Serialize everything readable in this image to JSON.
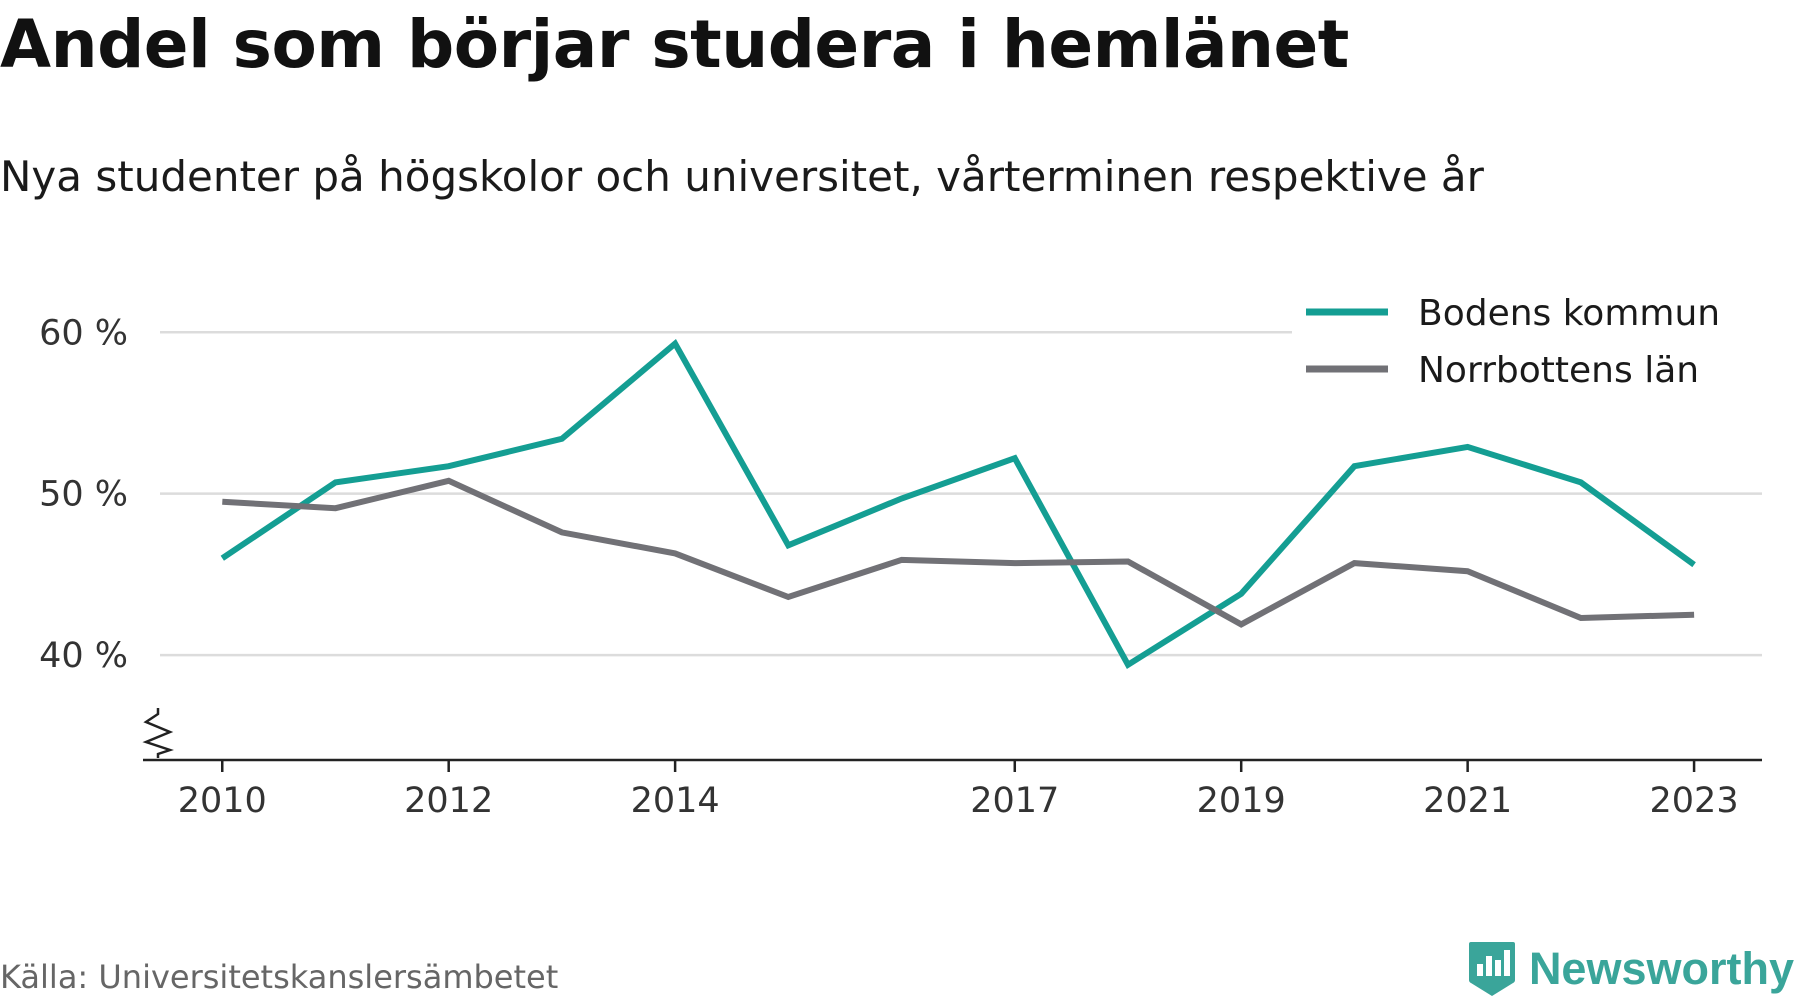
{
  "title": "Andel som börjar studera i hemlänet",
  "subtitle": "Nya studenter på högskolor och universitet, vårterminen respektive år",
  "source": "Källa: Universitetskanslersämbetet",
  "brand": {
    "name": "Newsworthy",
    "logo_icon": "newsworthy-bar-chart-icon",
    "color": "#3aa59a"
  },
  "chart_data": {
    "type": "line",
    "x": [
      2010,
      2011,
      2012,
      2013,
      2014,
      2015,
      2016,
      2017,
      2018,
      2019,
      2020,
      2021,
      2022,
      2023
    ],
    "x_tick_labels": [
      "2010",
      "2012",
      "2014",
      "2017",
      "2019",
      "2021",
      "2023"
    ],
    "y_ticks": [
      {
        "value": 40,
        "label": "40 %"
      },
      {
        "value": 50,
        "label": "50 %"
      },
      {
        "value": 60,
        "label": "60 %"
      }
    ],
    "ylim": [
      33.5,
      62
    ],
    "xlim": [
      2009.3,
      2023.6
    ],
    "y_axis_break": true,
    "grid": true,
    "legend_position": "top-right",
    "series": [
      {
        "name": "Bodens kommun",
        "color": "#149e93",
        "values": [
          46.0,
          50.7,
          51.7,
          53.4,
          59.3,
          46.8,
          49.7,
          52.2,
          39.4,
          43.8,
          51.7,
          52.9,
          50.7,
          45.6
        ]
      },
      {
        "name": "Norrbottens län",
        "color": "#717176",
        "values": [
          49.5,
          49.1,
          50.8,
          47.6,
          46.3,
          43.6,
          45.9,
          45.7,
          45.8,
          41.9,
          45.7,
          45.2,
          42.3,
          42.5
        ]
      }
    ]
  }
}
